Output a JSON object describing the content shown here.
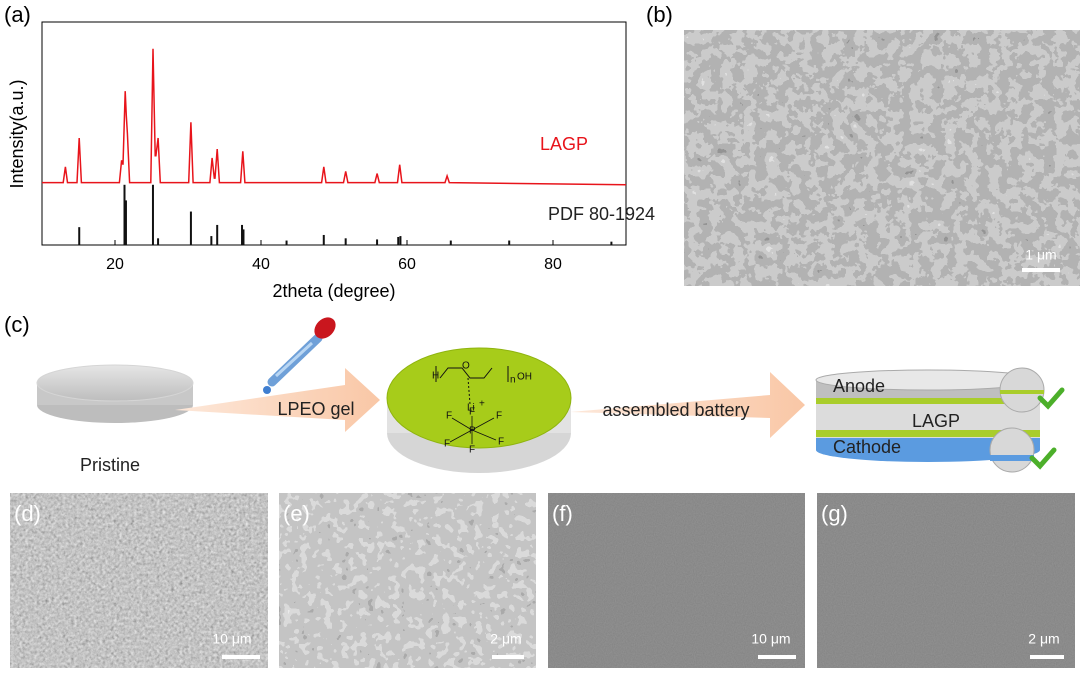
{
  "panel_labels": [
    "(a)",
    "(b)",
    "(c)",
    "(d)",
    "(e)",
    "(f)",
    "(g)"
  ],
  "chart_data": {
    "type": "xrd",
    "xlabel": "2theta (degree)",
    "ylabel": "Intensity(a.u.)",
    "xlim": [
      10,
      90
    ],
    "xticks": [
      20,
      40,
      60,
      80
    ],
    "ylim": [
      0,
      100
    ],
    "series": [
      {
        "name": "LAGP",
        "color": "#e8141b",
        "kind": "line",
        "x": [
          10,
          12.9,
          13.2,
          13.5,
          14.8,
          15.1,
          15.4,
          20.6,
          20.9,
          21.1,
          21.4,
          21.55,
          21.7,
          22.0,
          24.9,
          25.2,
          25.5,
          25.6,
          25.9,
          26.2,
          30.1,
          30.4,
          30.7,
          33.0,
          33.3,
          33.6,
          33.7,
          34.0,
          34.3,
          37.2,
          37.5,
          37.8,
          48.3,
          48.6,
          48.9,
          51.3,
          51.6,
          51.9,
          55.6,
          55.9,
          56.2,
          58.7,
          59.0,
          59.3,
          65.2,
          65.5,
          65.8,
          90
        ],
        "values": [
          28,
          28,
          35,
          28,
          28,
          48,
          28,
          28,
          38,
          36,
          69,
          58,
          50,
          28,
          28,
          88,
          40,
          40,
          48,
          28,
          28,
          55,
          28,
          28,
          39,
          30,
          30,
          43,
          28,
          28,
          42,
          28,
          28,
          35,
          28,
          28,
          33,
          28,
          28,
          32,
          28,
          28,
          36,
          28,
          28,
          31,
          28,
          27
        ]
      },
      {
        "name": "PDF 80-1924",
        "color": "#111111",
        "kind": "sticks",
        "x": [
          15.1,
          21.3,
          21.5,
          25.2,
          25.9,
          30.4,
          33.2,
          34.0,
          37.4,
          37.6,
          43.5,
          48.6,
          51.6,
          55.9,
          58.8,
          59.1,
          66,
          74,
          88
        ],
        "values": [
          8,
          27,
          20,
          27,
          3,
          15,
          4,
          9,
          9,
          7,
          2,
          4.5,
          3,
          2.5,
          3.6,
          4,
          2,
          2,
          1.5
        ]
      }
    ]
  },
  "diagram": {
    "pristine": "Pristine",
    "step1": "LPEO gel",
    "step2": "assembled battery",
    "anode": "Anode",
    "electrolyte": "LAGP",
    "cathode": "Cathode",
    "molecule": {
      "h": "H",
      "o": "O",
      "n": "n",
      "oh": "OH",
      "li": "Li",
      "plus": "+",
      "p": "P",
      "f": [
        "F",
        "F",
        "F",
        "F",
        "F",
        "F"
      ]
    }
  },
  "scale_bars": [
    "1 μm",
    "10 μm",
    "2 μm",
    "10 μm",
    "2 μm"
  ]
}
